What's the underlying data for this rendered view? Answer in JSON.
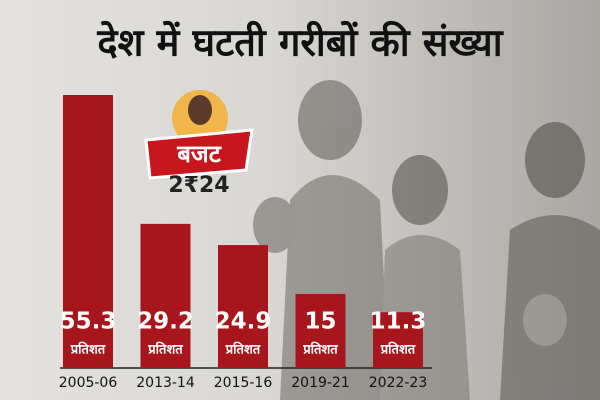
{
  "chart_data": {
    "type": "bar",
    "title": "देश में घटती गरीबों की संख्या",
    "categories": [
      "2005-06",
      "2013-14",
      "2015-16",
      "2019-21",
      "2022-23"
    ],
    "values": [
      55.3,
      29.2,
      24.9,
      15,
      11.3
    ],
    "value_unit": "प्रतिशत",
    "color": "#a8161d",
    "badge": {
      "title": "बजट",
      "year": "2₹24"
    }
  }
}
